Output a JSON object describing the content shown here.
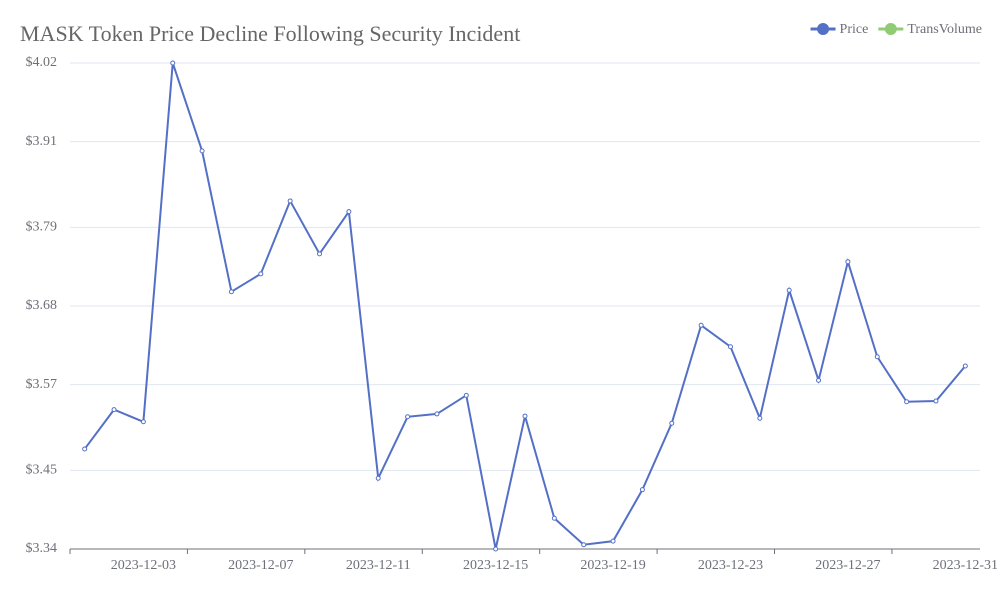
{
  "chart_data": {
    "type": "line",
    "title": "MASK Token Price Decline Following Security Incident",
    "categories": [
      null,
      null,
      "2023-12-03",
      null,
      null,
      null,
      "2023-12-07",
      null,
      null,
      null,
      "2023-12-11",
      null,
      null,
      null,
      "2023-12-15",
      null,
      null,
      null,
      "2023-12-19",
      null,
      null,
      null,
      "2023-12-23",
      null,
      null,
      null,
      "2023-12-27",
      null,
      null,
      null,
      "2023-12-31"
    ],
    "series": [
      {
        "name": "Price",
        "color": "#5470c6",
        "values": [
          3.48,
          3.535,
          3.518,
          4.02,
          3.897,
          3.7,
          3.725,
          3.827,
          3.753,
          3.812,
          3.439,
          3.525,
          3.529,
          3.555,
          3.34,
          3.526,
          3.383,
          3.346,
          3.351,
          3.423,
          3.516,
          3.653,
          3.623,
          3.523,
          3.702,
          3.576,
          3.742,
          3.609,
          3.546,
          3.547,
          3.596
        ]
      },
      {
        "name": "TransVolume",
        "color": "#91cc75",
        "values": [
          null,
          null,
          null,
          null,
          null,
          null,
          null,
          null,
          null,
          null,
          null,
          null,
          null,
          null,
          null,
          null,
          null,
          null,
          null,
          null,
          null,
          null,
          null,
          null,
          null,
          null,
          null,
          null,
          null,
          null,
          null
        ]
      }
    ],
    "ylim": [
      3.34,
      4.02
    ],
    "yticks": [
      {
        "value": 3.34,
        "label": "$3.34"
      },
      {
        "value": 3.45,
        "label": "$3.45"
      },
      {
        "value": 3.57,
        "label": "$3.57"
      },
      {
        "value": 3.68,
        "label": "$3.68"
      },
      {
        "value": 3.79,
        "label": "$3.79"
      },
      {
        "value": 3.91,
        "label": "$3.91"
      },
      {
        "value": 4.02,
        "label": "$4.02"
      }
    ],
    "grid": true,
    "legend": "top-right"
  }
}
